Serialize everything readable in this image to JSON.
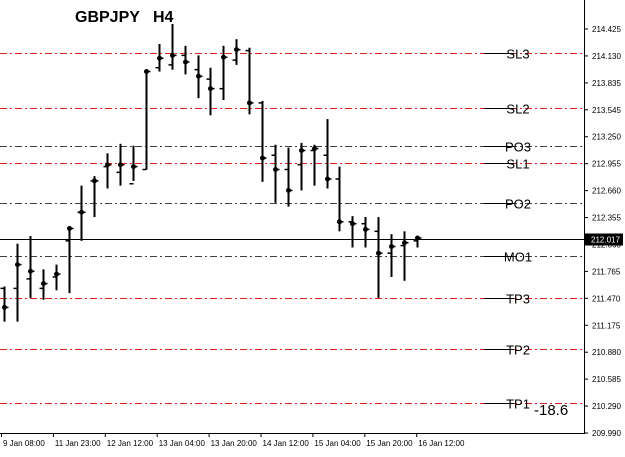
{
  "chart_data": {
    "type": "ohlc",
    "title": "GBPJPY   H4",
    "symbol": "GBPJPY",
    "timeframe": "H4",
    "ylim": [
      209.99,
      214.49
    ],
    "y_ticks": [
      "214.425",
      "214.130",
      "213.835",
      "213.545",
      "213.250",
      "212.955",
      "212.660",
      "212.355",
      "212.060",
      "211.765",
      "211.470",
      "211.175",
      "210.880",
      "210.585",
      "210.290",
      "209.990"
    ],
    "x_ticks": [
      "9 Jan 08:00",
      "11 Jan 23:00",
      "12 Jan 12:00",
      "13 Jan 04:00",
      "13 Jan 20:00",
      "14 Jan 12:00",
      "15 Jan 04:00",
      "15 Jan 20:00",
      "16 Jan 12:00"
    ],
    "current_price": "212.017",
    "annotation": "-18.6",
    "levels": [
      {
        "name": "SL3",
        "price": 213.98,
        "style": "red"
      },
      {
        "name": "SL2",
        "price": 213.4,
        "style": "red"
      },
      {
        "name": "PO3",
        "price": 213.0,
        "style": "dark"
      },
      {
        "name": "SL1",
        "price": 212.82,
        "style": "red"
      },
      {
        "name": "PO2",
        "price": 212.4,
        "style": "dark"
      },
      {
        "name": "MO1",
        "price": 211.84,
        "style": "dark"
      },
      {
        "name": "TP3",
        "price": 211.4,
        "style": "red"
      },
      {
        "name": "TP2",
        "price": 210.86,
        "style": "red"
      },
      {
        "name": "TP1",
        "price": 210.3,
        "style": "red"
      }
    ],
    "bars": [
      {
        "o": 211.5,
        "h": 211.52,
        "l": 211.15,
        "c": 211.3
      },
      {
        "o": 211.5,
        "h": 211.97,
        "l": 211.15,
        "c": 211.75
      },
      {
        "o": 211.6,
        "h": 212.05,
        "l": 211.4,
        "c": 211.68
      },
      {
        "o": 211.5,
        "h": 211.7,
        "l": 211.38,
        "c": 211.55
      },
      {
        "o": 211.62,
        "h": 211.75,
        "l": 211.48,
        "c": 211.65
      },
      {
        "o": 212.0,
        "h": 212.14,
        "l": 211.45,
        "c": 212.13
      },
      {
        "o": 212.3,
        "h": 212.58,
        "l": 212.0,
        "c": 212.3
      },
      {
        "o": 212.63,
        "h": 212.68,
        "l": 212.25,
        "c": 212.63
      },
      {
        "o": 212.78,
        "h": 212.92,
        "l": 212.55,
        "c": 212.8
      },
      {
        "o": 212.72,
        "h": 213.02,
        "l": 212.58,
        "c": 212.8
      },
      {
        "o": 212.6,
        "h": 213.0,
        "l": 212.63,
        "c": 212.78
      },
      {
        "o": 212.75,
        "h": 213.78,
        "l": 212.75,
        "c": 213.78
      },
      {
        "o": 213.82,
        "h": 214.07,
        "l": 213.78,
        "c": 213.92
      },
      {
        "o": 213.85,
        "h": 214.28,
        "l": 213.8,
        "c": 213.95
      },
      {
        "o": 213.95,
        "h": 214.05,
        "l": 213.75,
        "c": 213.88
      },
      {
        "o": 213.8,
        "h": 213.95,
        "l": 213.5,
        "c": 213.73
      },
      {
        "o": 213.7,
        "h": 213.82,
        "l": 213.32,
        "c": 213.6
      },
      {
        "o": 213.6,
        "h": 214.05,
        "l": 213.48,
        "c": 213.93
      },
      {
        "o": 213.9,
        "h": 214.12,
        "l": 213.85,
        "c": 214.01
      },
      {
        "o": 214.0,
        "h": 214.03,
        "l": 213.33,
        "c": 213.45
      },
      {
        "o": 213.45,
        "h": 213.47,
        "l": 212.62,
        "c": 212.87
      },
      {
        "o": 212.9,
        "h": 213.01,
        "l": 212.4,
        "c": 212.75
      },
      {
        "o": 212.75,
        "h": 212.98,
        "l": 212.36,
        "c": 212.53
      },
      {
        "o": 212.8,
        "h": 213.03,
        "l": 212.53,
        "c": 212.95
      },
      {
        "o": 212.95,
        "h": 213.01,
        "l": 212.58,
        "c": 212.97
      },
      {
        "o": 212.9,
        "h": 213.28,
        "l": 212.55,
        "c": 212.65
      },
      {
        "o": 212.65,
        "h": 212.78,
        "l": 212.1,
        "c": 212.2
      },
      {
        "o": 212.2,
        "h": 212.26,
        "l": 211.93,
        "c": 212.18
      },
      {
        "o": 212.18,
        "h": 212.25,
        "l": 211.93,
        "c": 212.12
      },
      {
        "o": 212.1,
        "h": 212.25,
        "l": 211.4,
        "c": 211.87
      },
      {
        "o": 211.87,
        "h": 212.07,
        "l": 211.62,
        "c": 211.94
      },
      {
        "o": 211.95,
        "h": 212.1,
        "l": 211.58,
        "c": 211.98
      },
      {
        "o": 212.0,
        "h": 212.05,
        "l": 211.93,
        "c": 212.03
      }
    ]
  }
}
